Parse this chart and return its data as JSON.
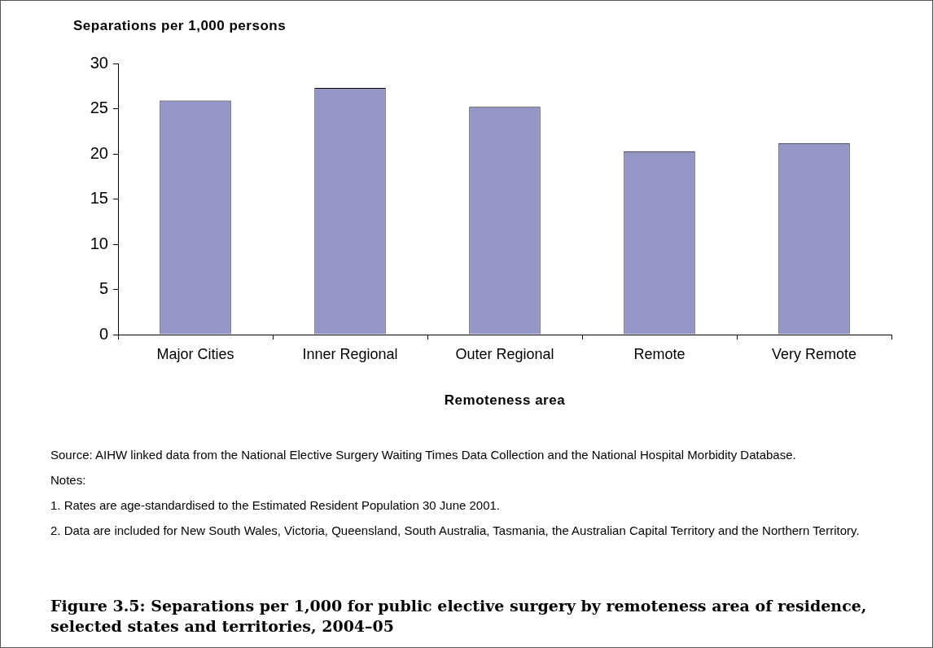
{
  "chart_data": {
    "type": "bar",
    "title": "Figure 3.5: Separations per 1,000 for public elective surgery by remoteness area of residence, selected states and territories, 2004–05",
    "ylabel": "Separations per 1,000 persons",
    "xlabel": "Remoteness area",
    "categories": [
      "Major Cities",
      "Inner Regional",
      "Outer Regional",
      "Remote",
      "Very Remote"
    ],
    "values": [
      25.9,
      27.3,
      25.2,
      20.3,
      21.2
    ],
    "color": "#9595c7",
    "ylim": [
      0,
      30
    ],
    "yticks": [
      0,
      5,
      10,
      15,
      20,
      25,
      30
    ],
    "grid": false,
    "legend": false,
    "annotations": [
      "Source: AIHW linked data from the National Elective Surgery Waiting Times Data Collection and the National Hospital Morbidity Database.",
      "Notes:",
      "1. Rates are age-standardised to the Estimated Resident Population 30 June 2001.",
      "2. Data are included for New South Wales, Victoria, Queensland, South Australia, Tasmania, the Australian Capital Territory and the Northern Territory."
    ]
  }
}
